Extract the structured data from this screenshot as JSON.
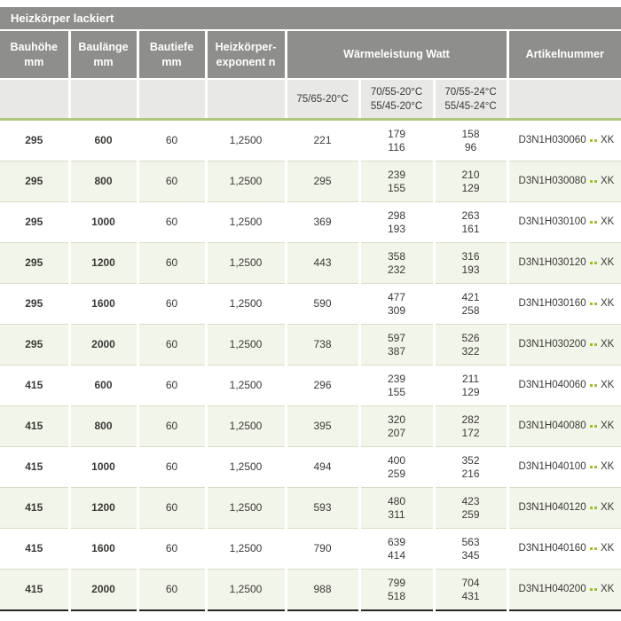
{
  "title_bar": {
    "label": "Heizkörper lackiert"
  },
  "columns": {
    "bauhoehe": {
      "line1": "Bauhöhe",
      "line2": "mm"
    },
    "baulaenge": {
      "line1": "Baulänge",
      "line2": "mm"
    },
    "bautiefe": {
      "line1": "Bautiefe",
      "line2": "mm"
    },
    "exponent": {
      "line1": "Heizkörper-",
      "line2": "exponent n"
    },
    "waermeleistung": {
      "label": "Wärmeleistung Watt"
    },
    "artikelnummer": {
      "label": "Artikelnummer"
    }
  },
  "subcolumns": {
    "t75_65_20": {
      "line1": "75/65-20°C"
    },
    "t70_55_20": {
      "line1": "70/55-20°C",
      "line2": "55/45-20°C"
    },
    "t70_55_24": {
      "line1": "70/55-24°C",
      "line2": "55/45-24°C"
    }
  },
  "colors": {
    "header_bg": "#8e8e8c",
    "header_text": "#ffffff",
    "subheader_bg": "#e8e8e6",
    "row_alt_bg": "#f2f5e9",
    "green_line": "#aec87e",
    "dot_green": "#9bc22b",
    "body_text": "#3a3a38",
    "bottom_border": "#262522"
  },
  "rows": [
    {
      "bauhoehe_mm": "295",
      "baulaenge_mm": "600",
      "bautiefe_mm": "60",
      "heizkoerper_exponent_n": "1,2500",
      "watt_75_65_20": "221",
      "watt_70_55_20": [
        "179",
        "116"
      ],
      "watt_70_55_24": [
        "158",
        "96"
      ],
      "artikel_code": "D3N1H030060",
      "artikel_suffix": "XK"
    },
    {
      "bauhoehe_mm": "295",
      "baulaenge_mm": "800",
      "bautiefe_mm": "60",
      "heizkoerper_exponent_n": "1,2500",
      "watt_75_65_20": "295",
      "watt_70_55_20": [
        "239",
        "155"
      ],
      "watt_70_55_24": [
        "210",
        "129"
      ],
      "artikel_code": "D3N1H030080",
      "artikel_suffix": "XK"
    },
    {
      "bauhoehe_mm": "295",
      "baulaenge_mm": "1000",
      "bautiefe_mm": "60",
      "heizkoerper_exponent_n": "1,2500",
      "watt_75_65_20": "369",
      "watt_70_55_20": [
        "298",
        "193"
      ],
      "watt_70_55_24": [
        "263",
        "161"
      ],
      "artikel_code": "D3N1H030100",
      "artikel_suffix": "XK"
    },
    {
      "bauhoehe_mm": "295",
      "baulaenge_mm": "1200",
      "bautiefe_mm": "60",
      "heizkoerper_exponent_n": "1,2500",
      "watt_75_65_20": "443",
      "watt_70_55_20": [
        "358",
        "232"
      ],
      "watt_70_55_24": [
        "316",
        "193"
      ],
      "artikel_code": "D3N1H030120",
      "artikel_suffix": "XK"
    },
    {
      "bauhoehe_mm": "295",
      "baulaenge_mm": "1600",
      "bautiefe_mm": "60",
      "heizkoerper_exponent_n": "1,2500",
      "watt_75_65_20": "590",
      "watt_70_55_20": [
        "477",
        "309"
      ],
      "watt_70_55_24": [
        "421",
        "258"
      ],
      "artikel_code": "D3N1H030160",
      "artikel_suffix": "XK"
    },
    {
      "bauhoehe_mm": "295",
      "baulaenge_mm": "2000",
      "bautiefe_mm": "60",
      "heizkoerper_exponent_n": "1,2500",
      "watt_75_65_20": "738",
      "watt_70_55_20": [
        "597",
        "387"
      ],
      "watt_70_55_24": [
        "526",
        "322"
      ],
      "artikel_code": "D3N1H030200",
      "artikel_suffix": "XK"
    },
    {
      "bauhoehe_mm": "415",
      "baulaenge_mm": "600",
      "bautiefe_mm": "60",
      "heizkoerper_exponent_n": "1,2500",
      "watt_75_65_20": "296",
      "watt_70_55_20": [
        "239",
        "155"
      ],
      "watt_70_55_24": [
        "211",
        "129"
      ],
      "artikel_code": "D3N1H040060",
      "artikel_suffix": "XK"
    },
    {
      "bauhoehe_mm": "415",
      "baulaenge_mm": "800",
      "bautiefe_mm": "60",
      "heizkoerper_exponent_n": "1,2500",
      "watt_75_65_20": "395",
      "watt_70_55_20": [
        "320",
        "207"
      ],
      "watt_70_55_24": [
        "282",
        "172"
      ],
      "artikel_code": "D3N1H040080",
      "artikel_suffix": "XK"
    },
    {
      "bauhoehe_mm": "415",
      "baulaenge_mm": "1000",
      "bautiefe_mm": "60",
      "heizkoerper_exponent_n": "1,2500",
      "watt_75_65_20": "494",
      "watt_70_55_20": [
        "400",
        "259"
      ],
      "watt_70_55_24": [
        "352",
        "216"
      ],
      "artikel_code": "D3N1H040100",
      "artikel_suffix": "XK"
    },
    {
      "bauhoehe_mm": "415",
      "baulaenge_mm": "1200",
      "bautiefe_mm": "60",
      "heizkoerper_exponent_n": "1,2500",
      "watt_75_65_20": "593",
      "watt_70_55_20": [
        "480",
        "311"
      ],
      "watt_70_55_24": [
        "423",
        "259"
      ],
      "artikel_code": "D3N1H040120",
      "artikel_suffix": "XK"
    },
    {
      "bauhoehe_mm": "415",
      "baulaenge_mm": "1600",
      "bautiefe_mm": "60",
      "heizkoerper_exponent_n": "1,2500",
      "watt_75_65_20": "790",
      "watt_70_55_20": [
        "639",
        "414"
      ],
      "watt_70_55_24": [
        "563",
        "345"
      ],
      "artikel_code": "D3N1H040160",
      "artikel_suffix": "XK"
    },
    {
      "bauhoehe_mm": "415",
      "baulaenge_mm": "2000",
      "bautiefe_mm": "60",
      "heizkoerper_exponent_n": "1,2500",
      "watt_75_65_20": "988",
      "watt_70_55_20": [
        "799",
        "518"
      ],
      "watt_70_55_24": [
        "704",
        "431"
      ],
      "artikel_code": "D3N1H040200",
      "artikel_suffix": "XK"
    }
  ]
}
